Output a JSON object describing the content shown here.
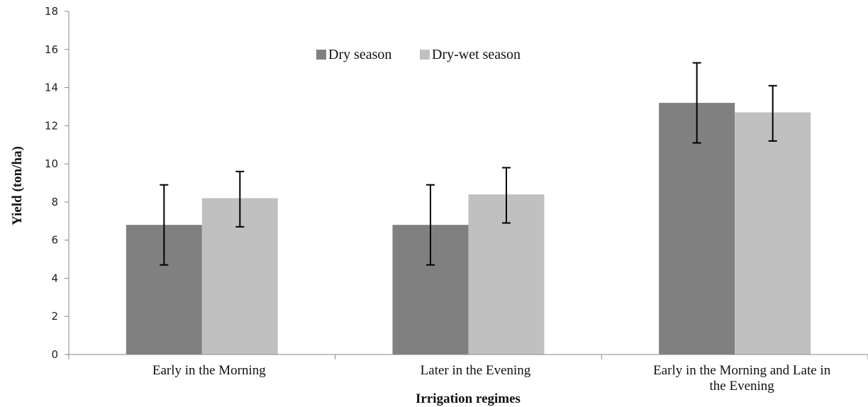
{
  "chart_data": {
    "type": "bar",
    "title": "",
    "xlabel": "Irrigation regimes",
    "ylabel": "Yield (ton/ha)",
    "ylim": [
      0,
      18
    ],
    "yticks": [
      0,
      2,
      4,
      6,
      8,
      10,
      12,
      14,
      16,
      18
    ],
    "categories": [
      [
        "Early in the Morning"
      ],
      [
        "Later in the Evening"
      ],
      [
        "Early in the Morning and Late in",
        "the Evening"
      ]
    ],
    "series": [
      {
        "name": "Dry season",
        "color": "#808080",
        "values": [
          6.8,
          6.8,
          13.2
        ],
        "error_low": [
          4.7,
          4.7,
          11.1
        ],
        "error_high": [
          8.9,
          8.9,
          15.3
        ]
      },
      {
        "name": "Dry-wet season",
        "color": "#c0c0c0",
        "values": [
          8.2,
          8.4,
          12.7
        ],
        "error_low": [
          6.7,
          6.9,
          11.2
        ],
        "error_high": [
          9.6,
          9.8,
          14.1
        ]
      }
    ],
    "legend": "top-center",
    "grid": false
  }
}
